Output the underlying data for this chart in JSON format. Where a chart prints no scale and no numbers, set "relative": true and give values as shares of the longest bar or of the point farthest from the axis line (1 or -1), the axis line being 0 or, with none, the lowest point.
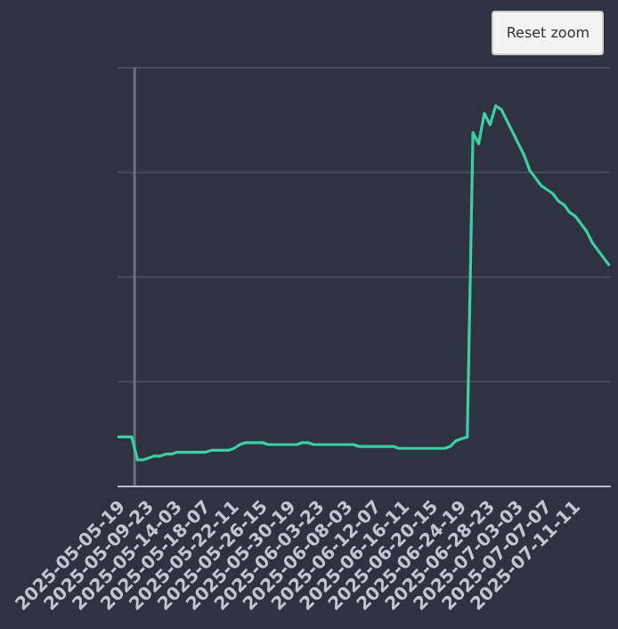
{
  "chart_data": {
    "type": "line",
    "relative": true,
    "grid": "y",
    "marker": "none",
    "line_style": "solid",
    "annotations": [
      "Reset zoom"
    ],
    "xlim": [
      "2025-05-04T13:00",
      "2025-07-15T20:00"
    ],
    "xticks": [
      {
        "value": "2025-05-05T19:00",
        "label": "2025-05-05-19"
      },
      {
        "value": "2025-05-09T23:00",
        "label": "2025-05-09-23"
      },
      {
        "value": "2025-05-14T03:00",
        "label": "2025-05-14-03"
      },
      {
        "value": "2025-05-18T07:00",
        "label": "2025-05-18-07"
      },
      {
        "value": "2025-05-22T11:00",
        "label": "2025-05-22-11"
      },
      {
        "value": "2025-05-26T15:00",
        "label": "2025-05-26-15"
      },
      {
        "value": "2025-05-30T19:00",
        "label": "2025-05-30-19"
      },
      {
        "value": "2025-06-03T23:00",
        "label": "2025-06-03-23"
      },
      {
        "value": "2025-06-08T03:00",
        "label": "2025-06-08-03"
      },
      {
        "value": "2025-06-12T07:00",
        "label": "2025-06-12-07"
      },
      {
        "value": "2025-06-16T11:00",
        "label": "2025-06-16-11"
      },
      {
        "value": "2025-06-20T15:00",
        "label": "2025-06-20-15"
      },
      {
        "value": "2025-06-24T19:00",
        "label": "2025-06-24-19"
      },
      {
        "value": "2025-06-28T23:00",
        "label": "2025-06-28-23"
      },
      {
        "value": "2025-07-03T03:00",
        "label": "2025-07-03-03"
      },
      {
        "value": "2025-07-07T07:00",
        "label": "2025-07-07-07"
      },
      {
        "value": "2025-07-11T11:00",
        "label": "2025-07-11-11"
      }
    ],
    "ref_lines": [
      {
        "axis": "x",
        "value": "2025-05-07T01:00",
        "color": "#6b6f80"
      }
    ],
    "series": [
      {
        "color": "#3ccfa5",
        "x": [
          "2025-05-04T13:00",
          "2025-05-05T19:00",
          "2025-05-06T15:00",
          "2025-05-07T11:00",
          "2025-05-08T07:00",
          "2025-05-09T03:00",
          "2025-05-09T23:00",
          "2025-05-10T19:00",
          "2025-05-11T15:00",
          "2025-05-12T11:00",
          "2025-05-13T07:00",
          "2025-05-14T03:00",
          "2025-05-14T23:00",
          "2025-05-15T19:00",
          "2025-05-16T15:00",
          "2025-05-17T11:00",
          "2025-05-18T07:00",
          "2025-05-19T03:00",
          "2025-05-19T23:00",
          "2025-05-20T19:00",
          "2025-05-21T15:00",
          "2025-05-22T11:00",
          "2025-05-23T07:00",
          "2025-05-24T03:00",
          "2025-05-24T23:00",
          "2025-05-25T19:00",
          "2025-05-26T15:00",
          "2025-05-27T11:00",
          "2025-05-28T07:00",
          "2025-05-29T03:00",
          "2025-05-29T23:00",
          "2025-05-30T19:00",
          "2025-05-31T15:00",
          "2025-06-01T11:00",
          "2025-06-02T07:00",
          "2025-06-03T03:00",
          "2025-06-03T23:00",
          "2025-06-04T19:00",
          "2025-06-05T15:00",
          "2025-06-06T11:00",
          "2025-06-07T07:00",
          "2025-06-08T03:00",
          "2025-06-08T23:00",
          "2025-06-09T19:00",
          "2025-06-10T15:00",
          "2025-06-11T11:00",
          "2025-06-12T07:00",
          "2025-06-13T03:00",
          "2025-06-13T23:00",
          "2025-06-14T19:00",
          "2025-06-15T15:00",
          "2025-06-16T11:00",
          "2025-06-17T07:00",
          "2025-06-18T03:00",
          "2025-06-18T23:00",
          "2025-06-19T19:00",
          "2025-06-20T15:00",
          "2025-06-21T11:00",
          "2025-06-22T07:00",
          "2025-06-23T03:00",
          "2025-06-23T23:00",
          "2025-06-24T19:00",
          "2025-06-25T15:00",
          "2025-06-26T11:00",
          "2025-06-27T07:00",
          "2025-06-28T03:00",
          "2025-06-28T23:00",
          "2025-06-29T19:00",
          "2025-06-30T15:00",
          "2025-07-01T11:00",
          "2025-07-02T07:00",
          "2025-07-03T03:00",
          "2025-07-03T23:00",
          "2025-07-04T19:00",
          "2025-07-05T15:00",
          "2025-07-06T11:00",
          "2025-07-07T07:00",
          "2025-07-08T03:00",
          "2025-07-08T23:00",
          "2025-07-09T19:00",
          "2025-07-10T15:00",
          "2025-07-11T11:00",
          "2025-07-12T07:00",
          "2025-07-13T03:00",
          "2025-07-13T23:00",
          "2025-07-14T19:00",
          "2025-07-15T15:00"
        ],
        "values": [
          0.13,
          0.13,
          0.13,
          0.07,
          0.07,
          0.075,
          0.08,
          0.08,
          0.085,
          0.085,
          0.09,
          0.09,
          0.09,
          0.09,
          0.09,
          0.09,
          0.095,
          0.095,
          0.095,
          0.095,
          0.1,
          0.11,
          0.115,
          0.115,
          0.115,
          0.115,
          0.11,
          0.11,
          0.11,
          0.11,
          0.11,
          0.11,
          0.115,
          0.115,
          0.11,
          0.11,
          0.11,
          0.11,
          0.11,
          0.11,
          0.11,
          0.11,
          0.105,
          0.105,
          0.105,
          0.105,
          0.105,
          0.105,
          0.105,
          0.1,
          0.1,
          0.1,
          0.1,
          0.1,
          0.1,
          0.1,
          0.1,
          0.1,
          0.105,
          0.12,
          0.125,
          0.13,
          0.93,
          0.9,
          0.98,
          0.95,
          1,
          0.99,
          0.96,
          0.93,
          0.9,
          0.87,
          0.83,
          0.81,
          0.79,
          0.78,
          0.77,
          0.75,
          0.74,
          0.72,
          0.71,
          0.69,
          0.67,
          0.64,
          0.62,
          0.6,
          0.58
        ]
      }
    ]
  }
}
